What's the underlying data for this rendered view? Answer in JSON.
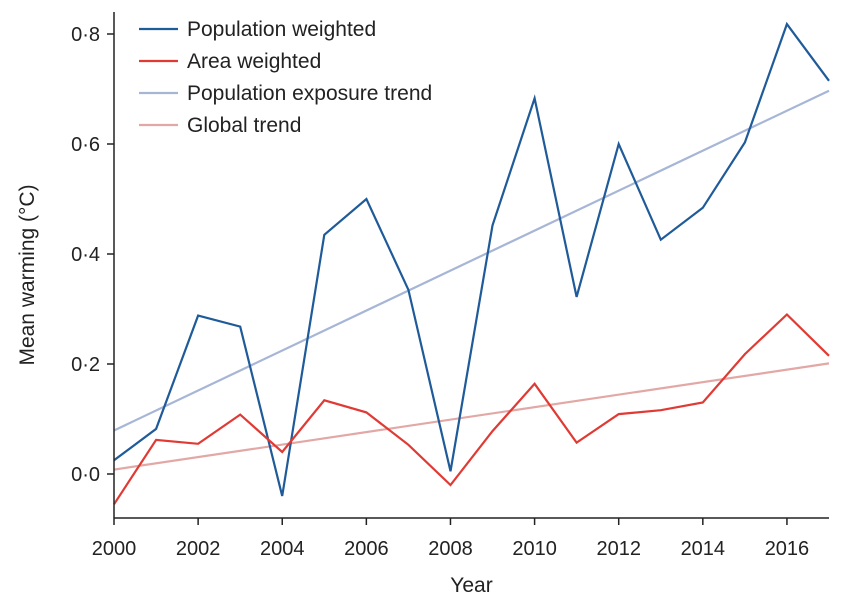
{
  "chart_data": {
    "type": "line",
    "xlabel": "Year",
    "ylabel": "Mean warming (°C)",
    "xlim": [
      2000,
      2017
    ],
    "ylim": [
      -0.08,
      0.84
    ],
    "x_ticks": [
      2000,
      2002,
      2004,
      2006,
      2008,
      2010,
      2012,
      2014,
      2016
    ],
    "x_tick_labels": [
      "2000",
      "2002",
      "2004",
      "2006",
      "2008",
      "2010",
      "2012",
      "2014",
      "2016"
    ],
    "y_ticks": [
      0.0,
      0.2,
      0.4,
      0.6,
      0.8
    ],
    "y_tick_labels": [
      "0·0",
      "0·2",
      "0·4",
      "0·6",
      "0·8"
    ],
    "grid": false,
    "legend_position": "top-left",
    "x": [
      2000,
      2001,
      2002,
      2003,
      2004,
      2005,
      2006,
      2007,
      2008,
      2009,
      2010,
      2011,
      2012,
      2013,
      2014,
      2015,
      2016,
      2017
    ],
    "series": [
      {
        "name": "Population weighted",
        "color": "#1f5a99",
        "values": [
          0.025,
          0.082,
          0.288,
          0.268,
          -0.04,
          0.435,
          0.5,
          0.335,
          0.005,
          0.452,
          0.683,
          0.322,
          0.6,
          0.426,
          0.484,
          0.603,
          0.818,
          0.715
        ]
      },
      {
        "name": "Area weighted",
        "color": "#e03a34",
        "values": [
          -0.055,
          0.062,
          0.055,
          0.108,
          0.04,
          0.134,
          0.112,
          0.053,
          -0.02,
          0.078,
          0.164,
          0.057,
          0.109,
          0.116,
          0.13,
          0.218,
          0.29,
          0.215
        ]
      },
      {
        "name": "Population exposure trend",
        "color": "#a7b6d6",
        "x": [
          2000,
          2017
        ],
        "values": [
          0.079,
          0.697
        ]
      },
      {
        "name": "Global trend",
        "color": "#e2a8a6",
        "x": [
          2000,
          2017
        ],
        "values": [
          0.008,
          0.201
        ]
      }
    ]
  }
}
